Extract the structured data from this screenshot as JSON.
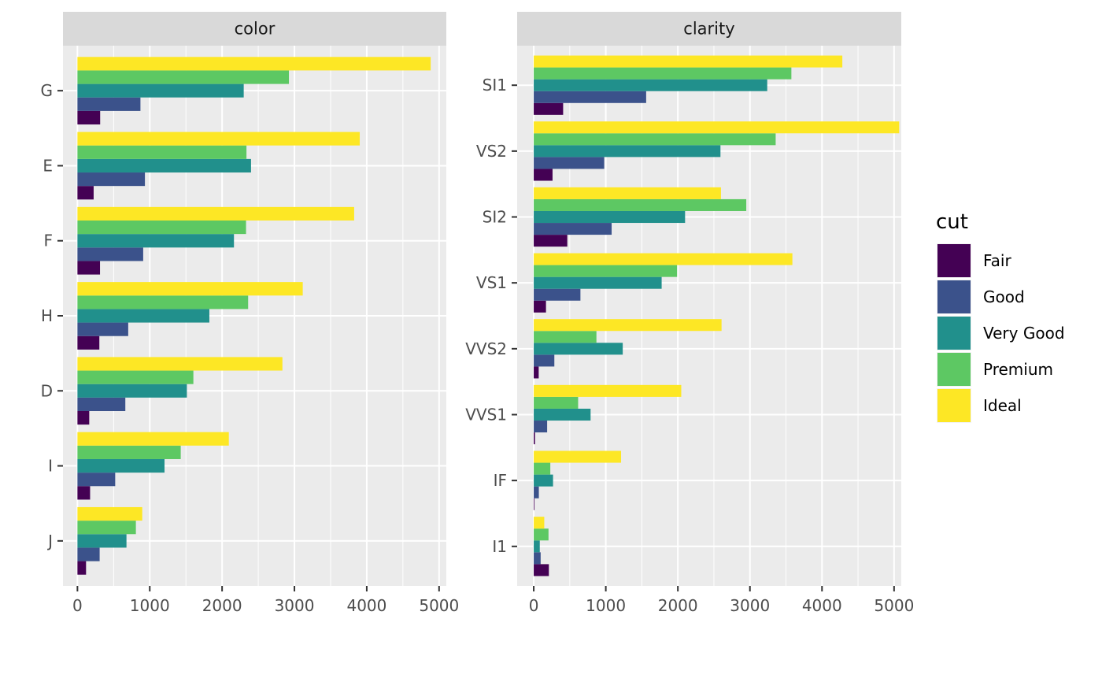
{
  "chart_data": [
    {
      "type": "bar",
      "orientation": "horizontal",
      "facet_label": "color",
      "categories": [
        "G",
        "E",
        "F",
        "H",
        "D",
        "I",
        "J"
      ],
      "x_ticks": [
        0,
        1000,
        2000,
        3000,
        4000,
        5000
      ],
      "xlim": [
        -200,
        5100
      ],
      "series": [
        {
          "name": "Fair",
          "values": [
            314,
            224,
            312,
            303,
            163,
            175,
            119
          ]
        },
        {
          "name": "Good",
          "values": [
            871,
            933,
            909,
            702,
            662,
            522,
            307
          ]
        },
        {
          "name": "Very Good",
          "values": [
            2299,
            2400,
            2164,
            1824,
            1513,
            1204,
            678
          ]
        },
        {
          "name": "Premium",
          "values": [
            2924,
            2337,
            2331,
            2360,
            1603,
            1428,
            808
          ]
        },
        {
          "name": "Ideal",
          "values": [
            4884,
            3903,
            3826,
            3115,
            2834,
            2093,
            896
          ]
        }
      ]
    },
    {
      "type": "bar",
      "orientation": "horizontal",
      "facet_label": "clarity",
      "categories": [
        "SI1",
        "VS2",
        "SI2",
        "VS1",
        "VVS2",
        "VVS1",
        "IF",
        "I1"
      ],
      "x_ticks": [
        0,
        1000,
        2000,
        3000,
        4000,
        5000
      ],
      "xlim": [
        -230,
        5100
      ],
      "series": [
        {
          "name": "Fair",
          "values": [
            408,
            261,
            466,
            170,
            69,
            17,
            9,
            210
          ]
        },
        {
          "name": "Good",
          "values": [
            1560,
            978,
            1081,
            648,
            286,
            186,
            71,
            96
          ]
        },
        {
          "name": "Very Good",
          "values": [
            3240,
            2591,
            2100,
            1775,
            1235,
            789,
            268,
            84
          ]
        },
        {
          "name": "Premium",
          "values": [
            3575,
            3357,
            2949,
            1989,
            870,
            616,
            230,
            205
          ]
        },
        {
          "name": "Ideal",
          "values": [
            4282,
            5071,
            2598,
            3589,
            2606,
            2047,
            1212,
            146
          ]
        }
      ]
    }
  ],
  "legend": {
    "title": "cut",
    "placement": "right",
    "items": [
      {
        "label": "Fair",
        "color": "#440154"
      },
      {
        "label": "Good",
        "color": "#3B528B"
      },
      {
        "label": "Very Good",
        "color": "#21908C"
      },
      {
        "label": "Premium",
        "color": "#5DC863"
      },
      {
        "label": "Ideal",
        "color": "#FDE725"
      }
    ]
  },
  "colors": {
    "panel_background": "#EBEBEB",
    "strip_background": "#D9D9D9",
    "grid_major": "#FFFFFF",
    "tick_text": "#4D4D4D"
  }
}
